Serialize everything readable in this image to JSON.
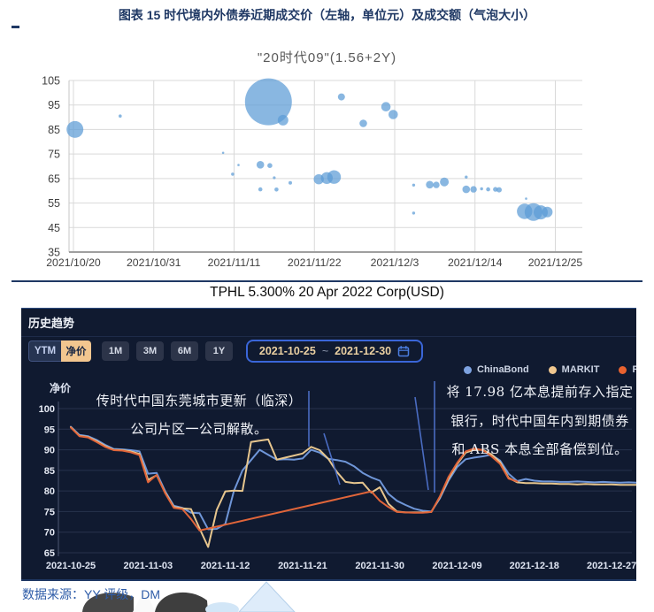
{
  "header": {
    "doc_title": "图表 15 时代境内外债券近期成交价（左轴，单位元）及成交额（气泡大小）"
  },
  "mid_title": "TPHL 5.300% 20 Apr 2022 Corp(USD)",
  "source_note": "数据来源：YY 评级，DM",
  "panel": {
    "title": "历史趋势",
    "mode_tabs": [
      {
        "label": "YTM",
        "active": false
      },
      {
        "label": "净价",
        "active": true
      }
    ],
    "range_buttons": [
      "1M",
      "3M",
      "6M",
      "1Y"
    ],
    "date_range": {
      "start": "2021-10-25",
      "separator": "~",
      "end": "2021-12-30"
    },
    "legend": [
      {
        "label": "ChinaBond",
        "color": "#7da2e0"
      },
      {
        "label": "MARKIT",
        "color": "#f0c78f"
      },
      {
        "label": "RP",
        "color": "#e9622f"
      }
    ],
    "annotations": {
      "left": [
        "传时代中国东莞城市更新（临深）",
        "公司片区一公司解散。"
      ],
      "right": [
        "将 17.98 亿本息提前存入指定",
        "银行，时代中国年内到期债券",
        "和 ABS 本息全部备偿到位。"
      ]
    }
  },
  "chart_data": [
    {
      "type": "bubble",
      "title": "\"20时代09\"(1.56+2Y)",
      "bubble_color": "#5b9bd5",
      "x_axis": {
        "unit": "days since 2021/10/20",
        "tick_step_days": 11,
        "tick_labels": [
          "2021/10/20",
          "2021/10/31",
          "2021/11/11",
          "2021/11/22",
          "2021/12/3",
          "2021/12/14",
          "2021/12/25"
        ]
      },
      "y_axis": {
        "ticks": [
          105,
          95,
          85,
          75,
          65,
          55,
          45,
          35
        ],
        "range": [
          35,
          105
        ]
      },
      "points_format": [
        "day_offset",
        "price",
        "bubble_radius_px"
      ],
      "points": [
        [
          0.2,
          85,
          9.5
        ],
        [
          6.4,
          90.5,
          1.8
        ],
        [
          20.5,
          75.5,
          1.3
        ],
        [
          21.8,
          66.8,
          1.8
        ],
        [
          22.6,
          70.5,
          1.3
        ],
        [
          25.6,
          70.6,
          4.3
        ],
        [
          26.9,
          70.3,
          2.8
        ],
        [
          25.6,
          60.6,
          2.3
        ],
        [
          26.7,
          96.3,
          26.5
        ],
        [
          27.5,
          65.3,
          1.6
        ],
        [
          27.8,
          60.5,
          2.3
        ],
        [
          28.7,
          88.8,
          6
        ],
        [
          29.7,
          63.2,
          2
        ],
        [
          33.6,
          64.7,
          5.7
        ],
        [
          34.7,
          65.2,
          6.7
        ],
        [
          35.7,
          65.6,
          7.7
        ],
        [
          36.7,
          98.3,
          4
        ],
        [
          39.7,
          87.5,
          4.3
        ],
        [
          42.8,
          94.3,
          5.3
        ],
        [
          43.8,
          91.1,
          5.3
        ],
        [
          46.6,
          62.3,
          1.7
        ],
        [
          46.6,
          50.9,
          1.7
        ],
        [
          48.8,
          62.5,
          4.3
        ],
        [
          49.7,
          62.4,
          3.7
        ],
        [
          50.8,
          63.6,
          5
        ],
        [
          53.8,
          65.6,
          1.7
        ],
        [
          53.8,
          60.6,
          4.3
        ],
        [
          54.8,
          60.6,
          3.7
        ],
        [
          55.9,
          60.8,
          1.7
        ],
        [
          56.8,
          60.6,
          2.3
        ],
        [
          57.8,
          60.6,
          2.7
        ],
        [
          58.3,
          60.4,
          3
        ],
        [
          62,
          56.8,
          1.3
        ],
        [
          61.8,
          51.6,
          8.7
        ],
        [
          63,
          51.3,
          10
        ],
        [
          64,
          51.2,
          8
        ],
        [
          64.9,
          51.3,
          6
        ]
      ]
    },
    {
      "type": "line",
      "title": "历史趋势（净价）",
      "x_axis": {
        "unit": "days since 2021-10-25",
        "tick_step_days": 9,
        "tick_labels": [
          "2021-10-25",
          "2021-11-03",
          "2021-11-12",
          "2021-11-21",
          "2021-11-30",
          "2021-12-09",
          "2021-12-18",
          "2021-12-27"
        ]
      },
      "y_axis": {
        "title": "净价",
        "ticks": [
          100,
          95,
          90,
          85,
          80,
          75,
          70,
          65
        ],
        "range": [
          65,
          100
        ]
      },
      "series": [
        {
          "name": "ChinaBond",
          "color": "#6f96d8",
          "points": [
            [
              0,
              95.6
            ],
            [
              1,
              93.6
            ],
            [
              2,
              93.3
            ],
            [
              3,
              92.4
            ],
            [
              4,
              91.2
            ],
            [
              5,
              90.2
            ],
            [
              6,
              90.1
            ],
            [
              7,
              89.9
            ],
            [
              8,
              89.6
            ],
            [
              9,
              84.2
            ],
            [
              10,
              84.4
            ],
            [
              11,
              79.9
            ],
            [
              12,
              76.4
            ],
            [
              13,
              75.9
            ],
            [
              14,
              74.7
            ],
            [
              15,
              74.6
            ],
            [
              16,
              70.7
            ],
            [
              17,
              70.8
            ],
            [
              18,
              72.0
            ],
            [
              19,
              80.0
            ],
            [
              20,
              85.0
            ],
            [
              21,
              87.5
            ],
            [
              22,
              90.0
            ],
            [
              23,
              88.8
            ],
            [
              24,
              87.6
            ],
            [
              25,
              87.7
            ],
            [
              26,
              87.6
            ],
            [
              27,
              87.9
            ],
            [
              28,
              90.0
            ],
            [
              29,
              89.3
            ],
            [
              30,
              87.8
            ],
            [
              31,
              87.5
            ],
            [
              32,
              87.1
            ],
            [
              33,
              86.0
            ],
            [
              34,
              84.4
            ],
            [
              35,
              83.3
            ],
            [
              36,
              82.5
            ],
            [
              37,
              79.3
            ],
            [
              38,
              77.6
            ],
            [
              39,
              76.6
            ],
            [
              40,
              75.7
            ],
            [
              41,
              75.2
            ],
            [
              42,
              75.0
            ],
            [
              43,
              78.2
            ],
            [
              44,
              82.5
            ],
            [
              45,
              85.8
            ],
            [
              46,
              87.7
            ],
            [
              47,
              88.1
            ],
            [
              48,
              88.4
            ],
            [
              49,
              88.8
            ],
            [
              50,
              87.4
            ],
            [
              51,
              84.2
            ],
            [
              52,
              82.4
            ],
            [
              53,
              82.9
            ],
            [
              54,
              82.5
            ],
            [
              55,
              82.3
            ],
            [
              56,
              82.3
            ],
            [
              57,
              82.2
            ],
            [
              58,
              82.2
            ],
            [
              59,
              82.3
            ],
            [
              60,
              82.2
            ],
            [
              61,
              82.1
            ],
            [
              62,
              82.2
            ],
            [
              63,
              82.1
            ],
            [
              64,
              82.0
            ],
            [
              65,
              82.1
            ],
            [
              66,
              82.0
            ],
            [
              66.8,
              82.0
            ]
          ]
        },
        {
          "name": "MARKIT",
          "color": "#e7c68e",
          "points": [
            [
              0,
              95.5
            ],
            [
              1,
              93.4
            ],
            [
              2,
              93.1
            ],
            [
              3,
              92.1
            ],
            [
              4,
              90.9
            ],
            [
              5,
              90.0
            ],
            [
              6,
              89.9
            ],
            [
              7,
              89.6
            ],
            [
              8,
              89.0
            ],
            [
              9,
              82.7
            ],
            [
              10,
              83.8
            ],
            [
              11,
              79.6
            ],
            [
              12,
              76.1
            ],
            [
              13,
              75.8
            ],
            [
              14,
              75.6
            ],
            [
              15,
              70.9
            ],
            [
              16,
              66.4
            ],
            [
              17,
              75.4
            ],
            [
              18,
              79.9
            ],
            [
              19,
              80.1
            ],
            [
              20,
              80.0
            ],
            [
              21,
              91.9
            ],
            [
              22,
              92.2
            ],
            [
              23,
              92.5
            ],
            [
              24,
              87.6
            ],
            [
              25,
              88.1
            ],
            [
              26,
              88.6
            ],
            [
              27,
              89.1
            ],
            [
              28,
              90.7
            ],
            [
              29,
              89.9
            ],
            [
              30,
              87.8
            ],
            [
              31,
              84.6
            ],
            [
              32,
              82.2
            ],
            [
              33,
              81.9
            ],
            [
              34,
              82.0
            ],
            [
              35,
              79.6
            ],
            [
              36,
              80.9
            ],
            [
              37,
              76.9
            ],
            [
              38,
              75.0
            ],
            [
              39,
              74.8
            ],
            [
              40,
              74.8
            ],
            [
              41,
              74.8
            ],
            [
              42,
              74.9
            ],
            [
              43,
              78.5
            ],
            [
              44,
              83.0
            ],
            [
              45,
              86.5
            ],
            [
              46,
              89.3
            ],
            [
              47,
              90.0
            ],
            [
              48,
              90.0
            ],
            [
              49,
              88.9
            ],
            [
              50,
              87.0
            ],
            [
              51,
              83.2
            ],
            [
              52,
              82.1
            ],
            [
              53,
              81.9
            ],
            [
              54,
              81.9
            ],
            [
              55,
              81.8
            ],
            [
              56,
              81.8
            ],
            [
              57,
              81.7
            ],
            [
              58,
              81.7
            ],
            [
              59,
              81.6
            ],
            [
              60,
              81.7
            ],
            [
              61,
              81.6
            ],
            [
              62,
              81.6
            ],
            [
              63,
              81.6
            ],
            [
              64,
              81.5
            ],
            [
              65,
              81.5
            ],
            [
              66,
              81.5
            ],
            [
              66.8,
              81.5
            ]
          ]
        },
        {
          "name": "RP",
          "color": "#e0653a",
          "points": [
            [
              0,
              95.4
            ],
            [
              1,
              93.3
            ],
            [
              2,
              93.0
            ],
            [
              3,
              91.9
            ],
            [
              4,
              90.7
            ],
            [
              5,
              89.9
            ],
            [
              6,
              89.8
            ],
            [
              7,
              89.4
            ],
            [
              8,
              88.7
            ],
            [
              9,
              82.1
            ],
            [
              10,
              83.9
            ],
            [
              11,
              79.4
            ],
            [
              12,
              75.9
            ],
            [
              13,
              75.6
            ],
            [
              14,
              73.2
            ],
            [
              15,
              70.4
            ],
            [
              35,
              79.9
            ],
            [
              36,
              77.6
            ],
            [
              37,
              76.1
            ],
            [
              38,
              74.9
            ],
            [
              39,
              74.8
            ],
            [
              40,
              74.7
            ],
            [
              41,
              74.7
            ],
            [
              42,
              74.9
            ],
            [
              43,
              78.7
            ],
            [
              44,
              83.4
            ],
            [
              45,
              86.8
            ],
            [
              46,
              89.6
            ],
            [
              47,
              90.3
            ],
            [
              48,
              89.9
            ],
            [
              49,
              88.4
            ],
            [
              50,
              86.6
            ],
            [
              51,
              83.0
            ],
            [
              52,
              82.3
            ]
          ]
        }
      ]
    }
  ]
}
